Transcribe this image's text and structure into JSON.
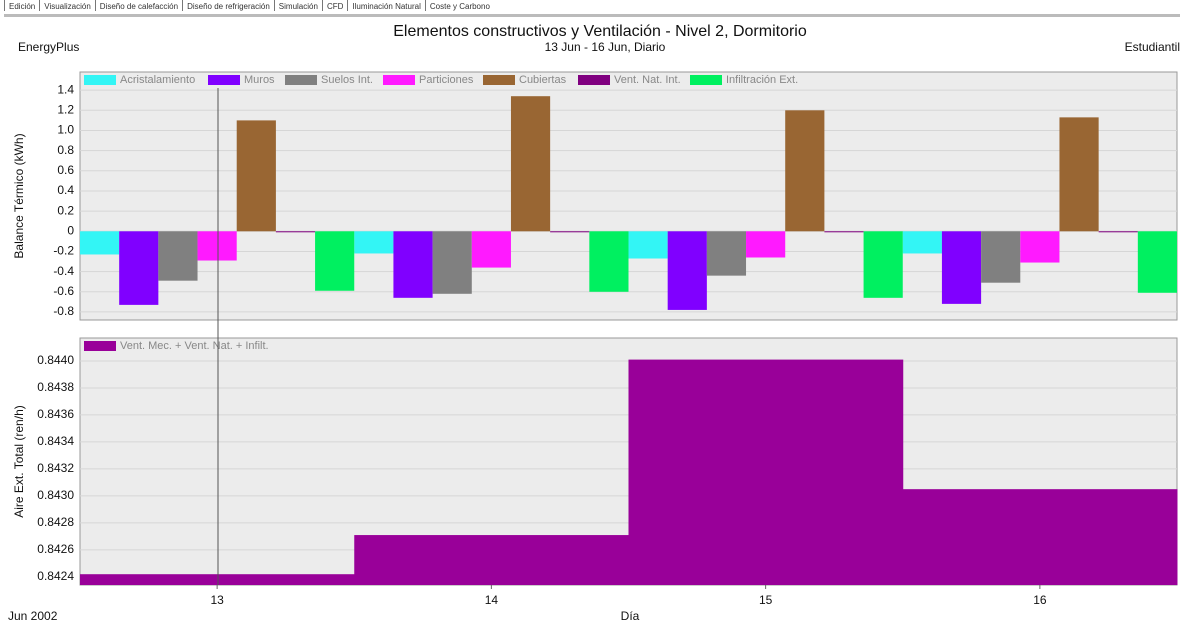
{
  "tabs": [
    "Edición",
    "Visualización",
    "Diseño de calefacción",
    "Diseño de refrigeración",
    "Simulación",
    "CFD",
    "Iluminación Natural",
    "Coste y Carbono"
  ],
  "header": {
    "title": "Elementos constructivos y Ventilación - Nivel 2, Dormitorio",
    "subtitle": "13 Jun - 16 Jun, Diario",
    "left": "EnergyPlus",
    "right": "Estudiantil"
  },
  "chart_data": [
    {
      "type": "bar",
      "y_label": "Balance Térmico (kWh)",
      "x": [
        13,
        14,
        15,
        16
      ],
      "xlim": [
        12.5,
        16.5
      ],
      "ylim": [
        -0.88,
        1.58
      ],
      "yticks": [
        -0.8,
        -0.6,
        -0.4,
        -0.2,
        0,
        0.2,
        0.4,
        0.6,
        0.8,
        {
          "value": 1,
          "label": "1.0"
        },
        1.2,
        1.4
      ],
      "grid": true,
      "series": [
        {
          "name": "Acristalamiento",
          "color": "#33f5f5",
          "values": [
            -0.23,
            -0.22,
            -0.27,
            -0.22
          ]
        },
        {
          "name": "Muros",
          "color": "#8000ff",
          "values": [
            -0.73,
            -0.66,
            -0.78,
            -0.72
          ]
        },
        {
          "name": "Suelos Int.",
          "color": "#808080",
          "values": [
            -0.49,
            -0.62,
            -0.44,
            -0.51
          ]
        },
        {
          "name": "Particiones",
          "color": "#ff1aff",
          "values": [
            -0.29,
            -0.36,
            -0.26,
            -0.31
          ]
        },
        {
          "name": "Cubiertas",
          "color": "#996633",
          "values": [
            1.1,
            1.34,
            1.2,
            1.13
          ]
        },
        {
          "name": "Vent. Nat. Int.",
          "color": "#800080",
          "values": [
            -0.01,
            -0.01,
            -0.01,
            -0.01
          ]
        },
        {
          "name": "Infiltración Ext.",
          "color": "#00f060",
          "values": [
            -0.59,
            -0.6,
            -0.66,
            -0.61
          ]
        }
      ]
    },
    {
      "type": "steparea",
      "y_label": "Aire Ext. Total (ren/h)",
      "x_label": "Día",
      "x_annotation": "Jun 2002",
      "x": [
        13,
        14,
        15,
        16
      ],
      "xlim": [
        12.5,
        16.5
      ],
      "xticks": [
        13,
        14,
        15,
        16
      ],
      "ylim": [
        0.84234,
        0.84417
      ],
      "yticks": [
        0.8424,
        0.8426,
        0.8428,
        {
          "value": 0.843,
          "label": "0.8430"
        },
        0.8432,
        0.8434,
        0.8436,
        0.8438,
        {
          "value": 0.844,
          "label": "0.8440"
        }
      ],
      "grid": true,
      "series": [
        {
          "name": "Vent. Mec. + Vent. Nat. + Infilt.",
          "color": "#990099",
          "values": [
            0.84242,
            0.84271,
            0.84401,
            0.84305
          ]
        }
      ]
    }
  ]
}
